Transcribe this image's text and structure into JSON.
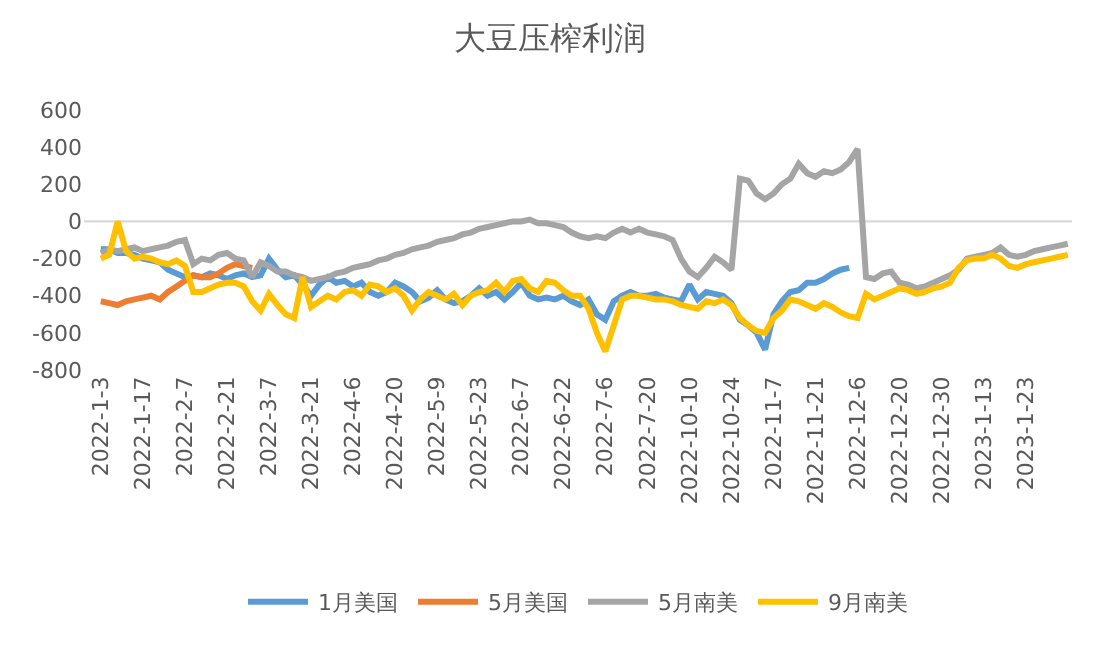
{
  "chart_data": {
    "type": "line",
    "title": "大豆压榨利润",
    "categories": [
      "2022-1-3",
      null,
      null,
      null,
      null,
      "2022-1-17",
      null,
      null,
      null,
      null,
      "2022-2-7",
      null,
      null,
      null,
      null,
      "2022-2-21",
      null,
      null,
      null,
      null,
      "2022-3-7",
      null,
      null,
      null,
      null,
      "2022-3-21",
      null,
      null,
      null,
      null,
      "2022-4-6",
      null,
      null,
      null,
      null,
      "2022-4-20",
      null,
      null,
      null,
      null,
      "2022-5-9",
      null,
      null,
      null,
      null,
      "2022-5-23",
      null,
      null,
      null,
      null,
      "2022-6-7",
      null,
      null,
      null,
      null,
      "2022-6-22",
      null,
      null,
      null,
      null,
      "2022-7-6",
      null,
      null,
      null,
      null,
      "2022-7-20",
      null,
      null,
      null,
      null,
      "2022-10-10",
      null,
      null,
      null,
      null,
      "2022-10-24",
      null,
      null,
      null,
      null,
      "2022-11-7",
      null,
      null,
      null,
      null,
      "2022-11-21",
      null,
      null,
      null,
      null,
      "2022-12-6",
      null,
      null,
      null,
      null,
      "2022-12-20",
      null,
      null,
      null,
      null,
      "2022-12-30",
      null,
      null,
      null,
      null,
      "2023-1-13",
      null,
      null,
      null,
      null,
      "2023-1-23",
      null,
      null,
      null,
      null,
      null
    ],
    "series": [
      {
        "name": "1月美国",
        "color": "#5b9bd5",
        "values": [
          -150,
          -150,
          -170,
          -170,
          -180,
          -200,
          -210,
          -220,
          -260,
          -280,
          -300,
          -290,
          -300,
          -280,
          -290,
          -310,
          -290,
          -280,
          -300,
          -290,
          -200,
          -260,
          -300,
          -290,
          -340,
          -400,
          -340,
          -300,
          -330,
          -320,
          -350,
          -330,
          -380,
          -400,
          -380,
          -330,
          -350,
          -380,
          -430,
          -410,
          -370,
          -420,
          -440,
          -430,
          -400,
          -360,
          -400,
          -380,
          -420,
          -380,
          -330,
          -400,
          -420,
          -410,
          -420,
          -400,
          -430,
          -450,
          -420,
          -500,
          -530,
          -430,
          -400,
          -380,
          -400,
          -400,
          -390,
          -410,
          -420,
          -430,
          -340,
          -420,
          -380,
          -390,
          -400,
          -440,
          -530,
          -560,
          -600,
          -690,
          -500,
          -430,
          -380,
          -370,
          -330,
          -330,
          -310,
          -280,
          -260,
          -250,
          null,
          null,
          null,
          null,
          null,
          null,
          null,
          null,
          null,
          null,
          null,
          null,
          null,
          null,
          null,
          null,
          null,
          null,
          null,
          null,
          null,
          null,
          null,
          null,
          null,
          null
        ]
      },
      {
        "name": "5月美国",
        "color": "#ed7d31",
        "values": [
          -430,
          -440,
          -450,
          -430,
          -420,
          -410,
          -400,
          -420,
          -380,
          -350,
          -320,
          -290,
          -300,
          -300,
          -280,
          -250,
          -230,
          -240,
          -250,
          null,
          null,
          null,
          null,
          null,
          null,
          null,
          null,
          null,
          null,
          null,
          null,
          null,
          null,
          null,
          null,
          null,
          null,
          null,
          null,
          null,
          null,
          null,
          null,
          null,
          null,
          null,
          null,
          null,
          null,
          null,
          null,
          null,
          null,
          null,
          null,
          null,
          null,
          null,
          null,
          null,
          null,
          null,
          null,
          null,
          null,
          null,
          null,
          null,
          null,
          null,
          null,
          null,
          null,
          null,
          null,
          null,
          null,
          null,
          null,
          null,
          null,
          null,
          null,
          null,
          null,
          null,
          null,
          null,
          null,
          null,
          null,
          null,
          null,
          null,
          null,
          null,
          null,
          null,
          null,
          null,
          null,
          null,
          null,
          null,
          null,
          null,
          null,
          null,
          null,
          null,
          null,
          null,
          null,
          null,
          null,
          null
        ]
      },
      {
        "name": "5月南美",
        "color": "#a5a5a5",
        "values": [
          -170,
          -150,
          -160,
          -150,
          -140,
          -160,
          -150,
          -140,
          -130,
          -110,
          -100,
          -230,
          -200,
          -210,
          -180,
          -170,
          -200,
          -210,
          -300,
          -220,
          -240,
          -270,
          -270,
          -290,
          -300,
          -320,
          -310,
          -300,
          -280,
          -270,
          -250,
          -240,
          -230,
          -210,
          -200,
          -180,
          -170,
          -150,
          -140,
          -130,
          -110,
          -100,
          -90,
          -70,
          -60,
          -40,
          -30,
          -20,
          -10,
          0,
          0,
          10,
          -10,
          -10,
          -20,
          -30,
          -60,
          -80,
          -90,
          -80,
          -90,
          -60,
          -40,
          -60,
          -40,
          -60,
          -70,
          -80,
          -100,
          -200,
          -270,
          -300,
          -250,
          -190,
          -220,
          -260,
          230,
          220,
          150,
          120,
          150,
          200,
          230,
          310,
          260,
          240,
          270,
          260,
          280,
          320,
          390,
          -300,
          -310,
          -280,
          -270,
          -330,
          -340,
          -360,
          -350,
          -330,
          -310,
          -290,
          -260,
          -200,
          -190,
          -180,
          -170,
          -140,
          -180,
          -190,
          -180,
          -160,
          -150,
          -140,
          -130,
          -120
        ]
      },
      {
        "name": "9月南美",
        "color": "#ffc000",
        "values": [
          -200,
          -180,
          0,
          -160,
          -200,
          -190,
          -200,
          -220,
          -230,
          -210,
          -240,
          -380,
          -380,
          -360,
          -340,
          -330,
          -330,
          -350,
          -430,
          -480,
          -390,
          -450,
          -500,
          -520,
          -300,
          -460,
          -430,
          -400,
          -420,
          -380,
          -370,
          -400,
          -340,
          -350,
          -380,
          -360,
          -400,
          -480,
          -420,
          -380,
          -400,
          -420,
          -390,
          -450,
          -400,
          -380,
          -370,
          -330,
          -380,
          -320,
          -310,
          -360,
          -380,
          -320,
          -330,
          -370,
          -400,
          -400,
          -470,
          -600,
          -700,
          -560,
          -420,
          -400,
          -400,
          -410,
          -420,
          -420,
          -430,
          -450,
          -460,
          -470,
          -430,
          -440,
          -420,
          -450,
          -520,
          -560,
          -590,
          -600,
          -520,
          -480,
          -420,
          -430,
          -450,
          -470,
          -440,
          -460,
          -490,
          -510,
          -520,
          -390,
          -420,
          -400,
          -380,
          -360,
          -370,
          -390,
          -380,
          -360,
          -350,
          -330,
          -250,
          -210,
          -200,
          -200,
          -180,
          -200,
          -240,
          -250,
          -230,
          -220,
          -210,
          -200,
          -190,
          -180
        ]
      }
    ],
    "ylim": [
      -800,
      600
    ],
    "yticks": [
      -800,
      -600,
      -400,
      -200,
      0,
      200,
      400,
      600
    ],
    "ref_lines": [
      {
        "axis": "y",
        "value": 0,
        "color": "#d9d9d9"
      }
    ],
    "grid": false,
    "legend": "bottom",
    "marker": "none",
    "line_style": "solid"
  }
}
